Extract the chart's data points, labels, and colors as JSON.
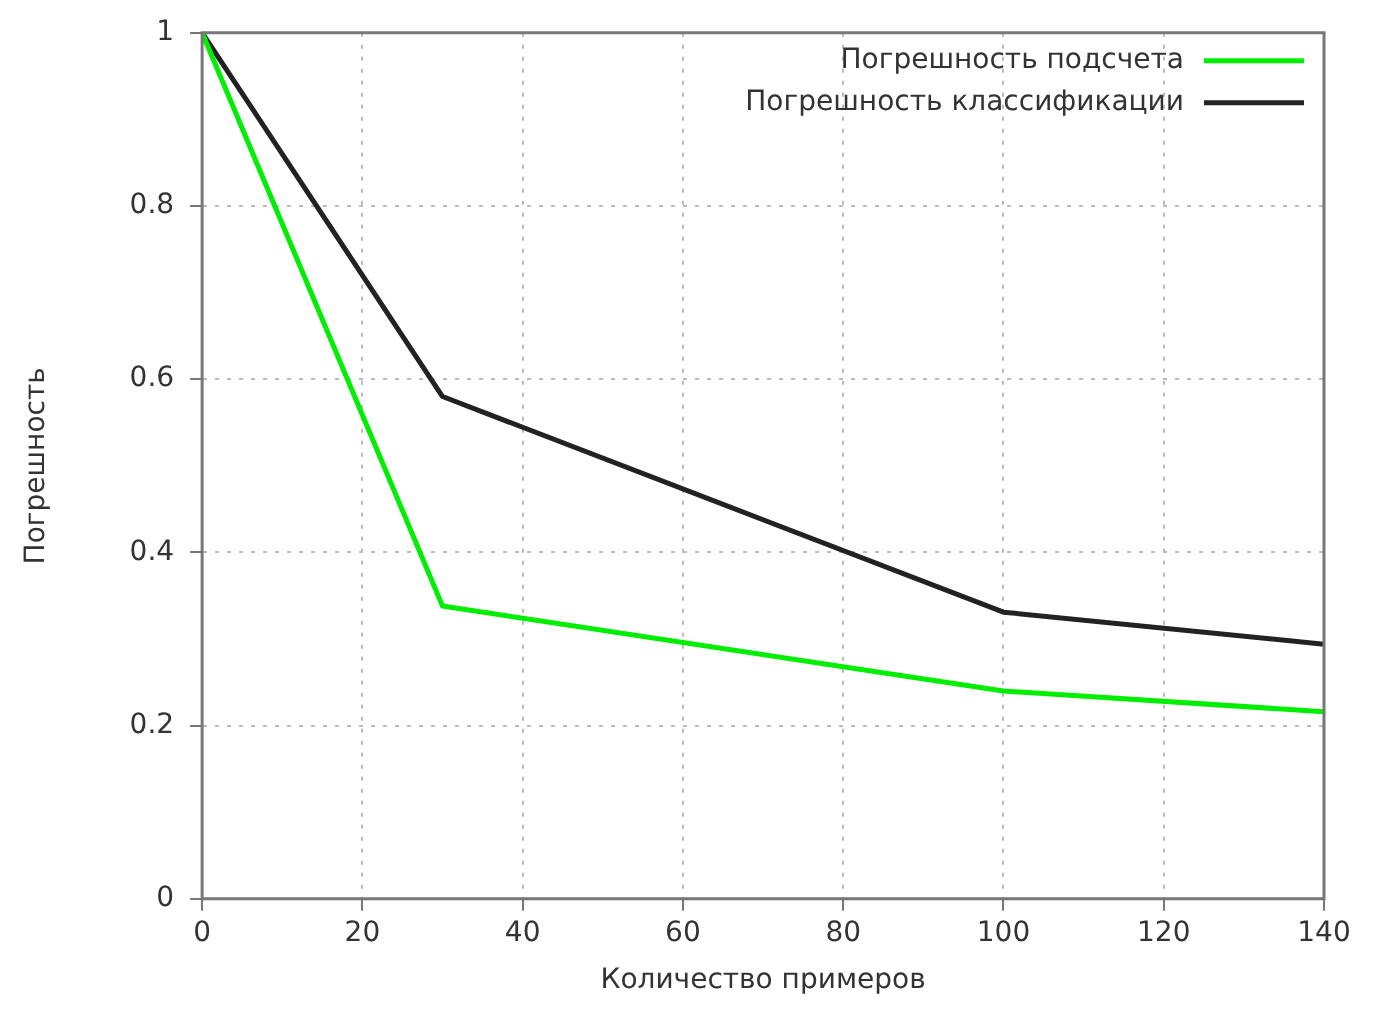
{
  "chart_data": {
    "type": "line",
    "xlabel": "Количество примеров",
    "ylabel": "Погрешность",
    "x": [
      0,
      30,
      100,
      140
    ],
    "series": [
      {
        "name": "Погрешность подсчета",
        "color": "#00ee00",
        "values": [
          1,
          0.338,
          0.24,
          0.216
        ]
      },
      {
        "name": "Погрешность классификации",
        "color": "#222222",
        "values": [
          1,
          0.58,
          0.331,
          0.294
        ]
      }
    ],
    "xlim": [
      0,
      140
    ],
    "xticks": [
      0,
      20,
      40,
      60,
      80,
      100,
      120,
      140
    ],
    "ylim": [
      0,
      1
    ],
    "yticks": [
      0,
      0.2,
      0.4,
      0.6,
      0.8,
      1
    ],
    "grid": true,
    "legend": "top right",
    "marker": "none",
    "line_style": "solid"
  }
}
